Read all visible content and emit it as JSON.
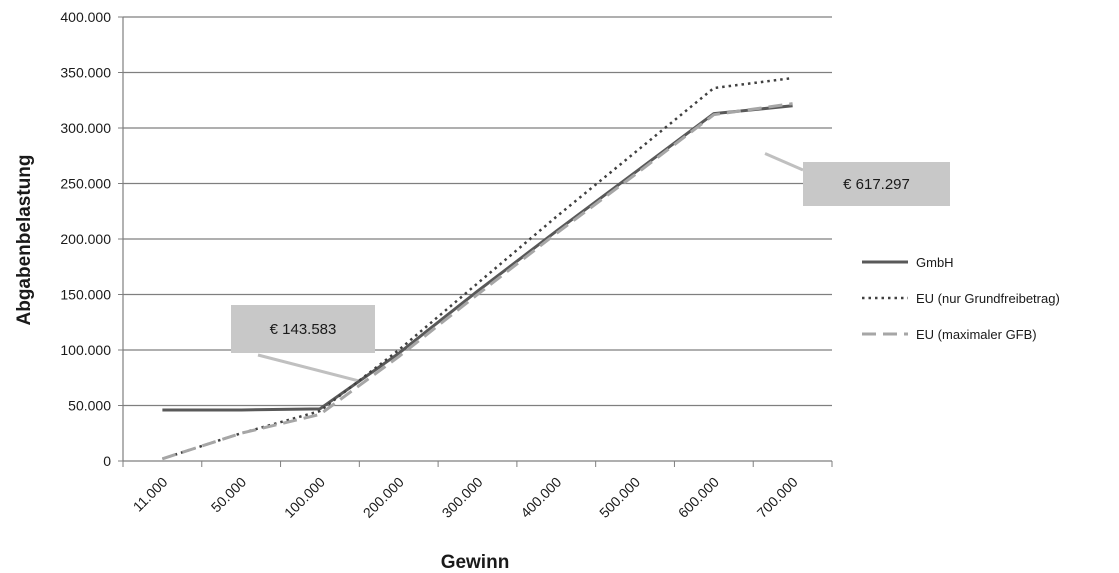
{
  "chart_data": {
    "type": "line",
    "xlabel": "Gewinn",
    "ylabel": "Abgabenbelastung",
    "categories": [
      "11.000",
      "50.000",
      "100.000",
      "200.000",
      "300.000",
      "400.000",
      "500.000",
      "600.000",
      "700.000"
    ],
    "yticks": [
      "0",
      "50.000",
      "100.000",
      "150.000",
      "200.000",
      "250.000",
      "300.000",
      "350.000",
      "400.000"
    ],
    "ylim": [
      0,
      400000
    ],
    "grid": true,
    "legend_position": "right",
    "series": [
      {
        "name": "GmbH",
        "style": "solid",
        "color": "#595959",
        "values": [
          46000,
          46000,
          47000,
          97000,
          153000,
          207000,
          260000,
          313000,
          320000
        ]
      },
      {
        "name": "EU (nur Grundfreibetrag)",
        "style": "dotted",
        "color": "#404040",
        "values": [
          2000,
          25000,
          45000,
          100000,
          160000,
          220000,
          278000,
          336000,
          345000
        ]
      },
      {
        "name": "EU (maximaler GFB)",
        "style": "dashed",
        "color": "#a6a6a6",
        "values": [
          2000,
          25000,
          42000,
          94000,
          150000,
          205000,
          258000,
          312000,
          322000
        ]
      }
    ],
    "annotations": [
      {
        "text": "€ 143.583",
        "at_category": 2.5,
        "at_value": 72000
      },
      {
        "text": "€ 617.297",
        "at_category": 7.65,
        "at_value": 277000
      }
    ]
  }
}
